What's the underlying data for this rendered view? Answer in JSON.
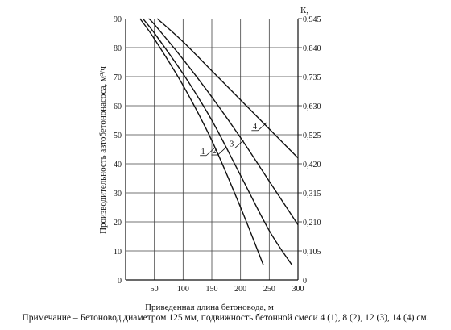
{
  "chart_data": {
    "type": "line",
    "title": "",
    "xlabel": "Приведенная длина бетоновода, м",
    "ylabel": "Производительность автобетононасоса, м³/ч",
    "y2label": "К,",
    "xlim": [
      0,
      300
    ],
    "ylim": [
      0,
      90
    ],
    "y2lim": [
      0,
      0.945
    ],
    "x_ticks": [
      "50",
      "100",
      "150",
      "200",
      "250",
      "300"
    ],
    "y_ticks": [
      "10",
      "20",
      "30",
      "40",
      "50",
      "60",
      "70",
      "80",
      "90"
    ],
    "y_origin_label": "0",
    "y2_ticks": [
      "0,105",
      "0,210",
      "0,315",
      "0,420",
      "0,525",
      "0,630",
      "0,735",
      "0,840",
      "0,945"
    ],
    "y2_origin_label": "0",
    "grid": true,
    "series": [
      {
        "name": "1",
        "x": [
          25,
          50,
          100,
          150,
          200,
          240
        ],
        "y": [
          90,
          83,
          67,
          48,
          25,
          5
        ]
      },
      {
        "name": "2",
        "x": [
          30,
          50,
          100,
          150,
          200,
          250,
          290
        ],
        "y": [
          90,
          85,
          71,
          55,
          36,
          17,
          5
        ]
      },
      {
        "name": "3",
        "x": [
          40,
          50,
          100,
          150,
          200,
          250,
          300
        ],
        "y": [
          90,
          88,
          76,
          63,
          49,
          34,
          19
        ]
      },
      {
        "name": "4",
        "x": [
          55,
          100,
          150,
          200,
          250,
          300
        ],
        "y": [
          90,
          82,
          72,
          62,
          52,
          42
        ]
      }
    ]
  },
  "note": "Примечание – Бетоновод диаметром 125 мм, подвижность бетонной смеси 4 (1), 8 (2), 12 (3), 14 (4) см."
}
